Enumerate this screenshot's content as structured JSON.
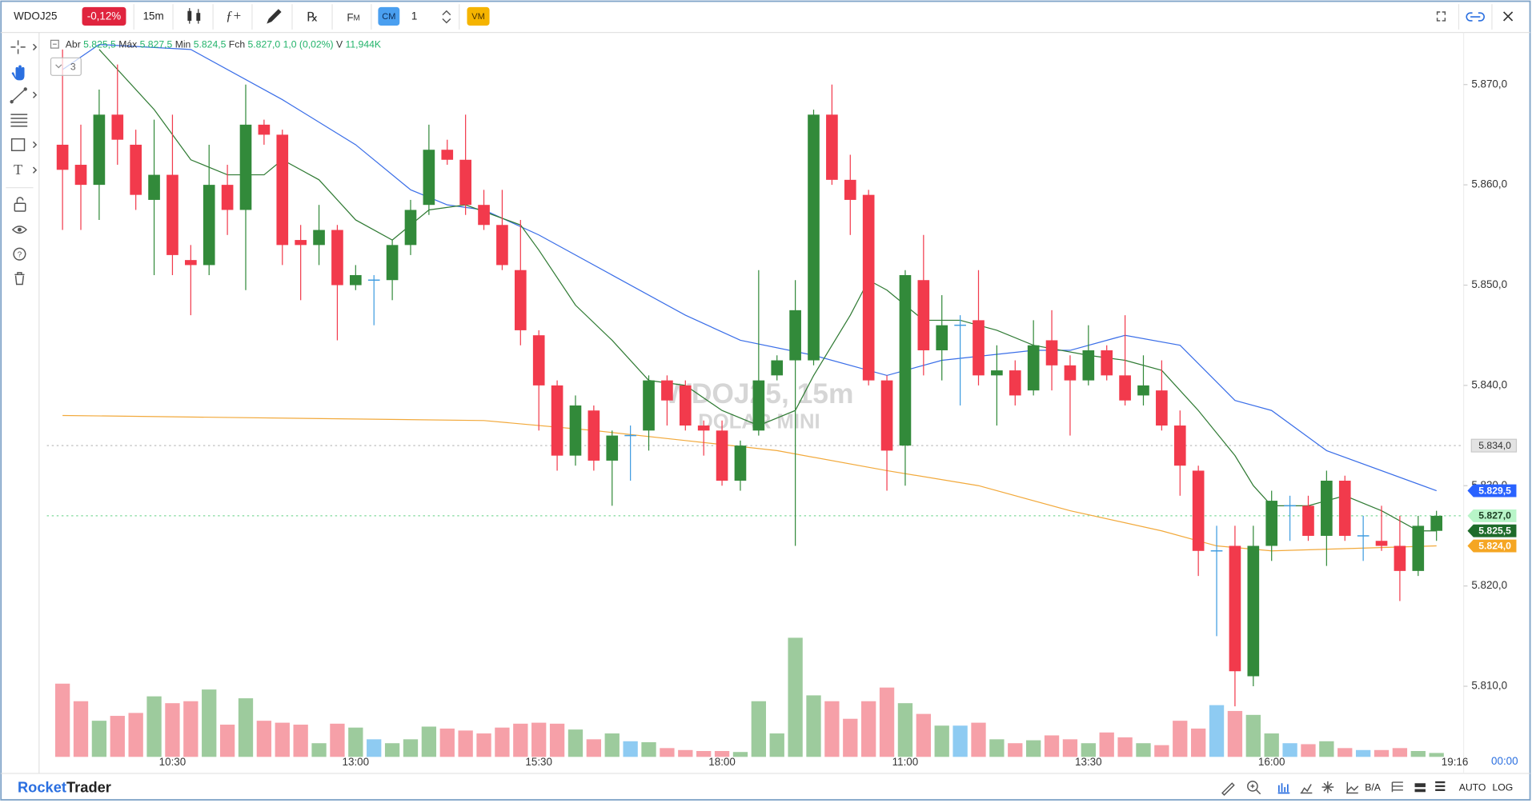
{
  "toolbar": {
    "symbol": "WDOJ25",
    "change": "-0,12%",
    "timeframe": "15m",
    "fm": "F",
    "fm_sub": "M",
    "cm": "CM",
    "quantity": "1",
    "vm": "VM"
  },
  "legend": {
    "items": [
      {
        "label": "Abr",
        "value": "5.825,5"
      },
      {
        "label": "Máx",
        "value": "5.827,5"
      },
      {
        "label": "Min",
        "value": "5.824,5"
      },
      {
        "label": "Fch",
        "value": "5.827,0"
      }
    ],
    "change": "1,0 (0,02%)",
    "volume_label": "V",
    "volume": "11,944K",
    "collapsed_count": "3"
  },
  "watermark": {
    "line1": "WDOJ25, 15m",
    "line2": "DOLAR MINI"
  },
  "chart_data": {
    "type": "candlestick",
    "categories": [
      null,
      null,
      null,
      null,
      null,
      null,
      "10:30",
      null,
      null,
      null,
      null,
      null,
      null,
      null,
      null,
      null,
      "13:00",
      null,
      null,
      null,
      null,
      null,
      null,
      null,
      null,
      null,
      "15:30",
      null,
      null,
      null,
      null,
      null,
      null,
      null,
      null,
      null,
      "18:00",
      null,
      null,
      null,
      null,
      null,
      null,
      null,
      null,
      null,
      "11:00",
      null,
      null,
      null,
      null,
      null,
      null,
      null,
      null,
      null,
      "13:30",
      null,
      null,
      null,
      null,
      null,
      null,
      null,
      null,
      null,
      "16:00",
      null,
      null,
      null,
      null,
      null,
      null,
      null,
      null,
      null
    ],
    "open": [
      5864,
      5862,
      5860,
      5867,
      5864,
      5858.5,
      5861,
      5852.5,
      5852,
      5860,
      5857.5,
      5866,
      5865,
      5854.5,
      5854,
      5855.5,
      5850,
      5850.5,
      5850.5,
      5854,
      5858,
      5863.5,
      5862.5,
      5858,
      5856,
      5851.5,
      5845,
      5840,
      5833,
      5837.5,
      5832.5,
      5835,
      5835.5,
      5840.5,
      5840,
      5836,
      5835.5,
      5830.5,
      5835.5,
      5841,
      5842.5,
      5842.5,
      5867,
      5860.5,
      5859,
      5840.5,
      5834,
      5850.5,
      5843.5,
      5846,
      5846.5,
      5841,
      5841.5,
      5839.5,
      5844.5,
      5842,
      5840.5,
      5843.5,
      5841,
      5839,
      5839.5,
      5836,
      5831.5,
      5823.5,
      5824,
      5811,
      5824,
      5828,
      5828,
      5825,
      5830.5,
      5825,
      5824.5,
      5824,
      5821.5,
      5825.5
    ],
    "high": [
      5873.5,
      5866,
      5869.5,
      5872,
      5865.5,
      5866.5,
      5867,
      5854,
      5864,
      5862,
      5870,
      5866.5,
      5865.5,
      5856,
      5858,
      5856,
      5852,
      5851,
      5854.5,
      5858.5,
      5866,
      5864.5,
      5867,
      5859.5,
      5859.5,
      5856.5,
      5845.5,
      5840.5,
      5839,
      5838,
      5835.5,
      5836,
      5841,
      5841,
      5840.5,
      5836.5,
      5836.5,
      5834.5,
      5851.5,
      5843,
      5850.5,
      5867.5,
      5870,
      5863,
      5859.5,
      5841,
      5851.5,
      5855,
      5849,
      5847,
      5851.5,
      5844,
      5842.5,
      5846.5,
      5847.5,
      5843,
      5846,
      5844,
      5847,
      5843,
      5842.5,
      5837.5,
      5832,
      5826,
      5826,
      5826,
      5829.5,
      5829,
      5829,
      5831.5,
      5831,
      5827,
      5828,
      5827,
      5827,
      5827.5
    ],
    "low": [
      5855.5,
      5855.5,
      5856.5,
      5862,
      5857.5,
      5851,
      5851,
      5847,
      5851,
      5855,
      5849.5,
      5864,
      5852,
      5848.5,
      5852,
      5844.5,
      5849.5,
      5846,
      5848.5,
      5853,
      5857,
      5862,
      5857,
      5855.5,
      5851.5,
      5844,
      5835.5,
      5831.5,
      5832,
      5831.5,
      5828,
      5830.5,
      5833.5,
      5836,
      5835.5,
      5833,
      5830,
      5829.5,
      5835,
      5840.5,
      5824,
      5842,
      5860,
      5855,
      5840,
      5829.5,
      5830,
      5841,
      5840.5,
      5838,
      5840,
      5836,
      5838,
      5839,
      5839.5,
      5835,
      5840,
      5840.5,
      5838,
      5838,
      5835.5,
      5829,
      5821,
      5815,
      5808,
      5810,
      5822.5,
      5824.5,
      5824.5,
      5822,
      5824.5,
      5822.5,
      5823.5,
      5818.5,
      5821,
      5824.5
    ],
    "close": [
      5861.5,
      5860,
      5867,
      5864.5,
      5859,
      5861,
      5853,
      5852,
      5860,
      5857.5,
      5866,
      5865,
      5854,
      5854,
      5855.5,
      5850,
      5851,
      5850.5,
      5854,
      5857.5,
      5863.5,
      5862.5,
      5858,
      5856,
      5852,
      5845.5,
      5840,
      5833,
      5838,
      5832.5,
      5835,
      5835,
      5840.5,
      5838.5,
      5836,
      5835.5,
      5830.5,
      5834,
      5840.5,
      5842.5,
      5847.5,
      5867,
      5860.5,
      5858.5,
      5840.5,
      5833.5,
      5851,
      5843.5,
      5846,
      5846,
      5841,
      5841.5,
      5839,
      5844,
      5842,
      5840.5,
      5843.5,
      5841,
      5838.5,
      5840,
      5836,
      5832,
      5823.5,
      5823.5,
      5811.5,
      5824,
      5828.5,
      5828,
      5825,
      5830.5,
      5825,
      5825,
      5824,
      5821.5,
      5826,
      5827
    ],
    "volume": [
      75,
      57,
      37,
      42,
      45,
      62,
      55,
      57,
      69,
      33,
      60,
      37,
      35,
      33,
      14,
      34,
      30,
      18,
      14,
      18,
      31,
      29,
      27,
      24,
      30,
      34,
      35,
      34,
      28,
      18,
      24,
      16,
      15,
      9,
      7,
      6,
      6,
      5,
      57,
      24,
      122,
      63,
      57,
      39,
      57,
      71,
      55,
      44,
      32,
      32,
      35,
      18,
      14,
      17,
      22,
      18,
      14,
      25,
      20,
      14,
      12,
      37,
      29,
      53,
      47,
      43,
      24,
      14,
      13,
      16,
      9,
      7,
      7,
      9,
      6,
      4
    ],
    "up_color": "#328a3a",
    "down_color": "#f23a4c",
    "doji_color": "#3d9be0",
    "volume_up_color": "#9dcb9d",
    "volume_down_color": "#f6a0a8",
    "volume_doji_color": "#8ecbf2",
    "lines": [
      {
        "color": "#3a6ee8",
        "x": [
          0,
          2,
          7,
          12,
          16,
          19,
          21,
          23,
          26,
          30,
          34,
          37,
          41,
          45,
          48,
          53,
          55,
          58,
          61,
          64,
          66,
          69,
          75
        ],
        "values": [
          5871.5,
          5874,
          5873.5,
          5868.5,
          5864,
          5859.5,
          5858,
          5857.5,
          5855,
          5851,
          5847,
          5844.5,
          5843,
          5841,
          5842.5,
          5843.5,
          5843.5,
          5845,
          5844,
          5838.5,
          5837.5,
          5833.5,
          5829.5
        ]
      },
      {
        "color": "#2f7a33",
        "x": [
          2,
          5,
          7,
          9,
          11,
          12,
          14,
          16,
          18,
          20,
          22,
          25,
          26,
          28,
          30,
          32,
          34,
          36,
          38,
          40,
          41,
          43,
          44,
          45,
          47,
          49,
          51,
          53,
          56,
          58,
          60,
          62,
          64,
          65,
          66,
          68,
          70,
          72,
          74,
          75
        ],
        "values": [
          5873.5,
          5867.5,
          5862.5,
          5861,
          5861,
          5862.5,
          5860.5,
          5856.5,
          5854.5,
          5857.5,
          5858,
          5856,
          5853.5,
          5848,
          5844.5,
          5840.5,
          5840,
          5837.5,
          5836,
          5837.5,
          5841,
          5847,
          5850.5,
          5849.5,
          5846.5,
          5846.5,
          5845.5,
          5844,
          5843,
          5842.5,
          5841.5,
          5837.5,
          5833,
          5830,
          5828,
          5828,
          5829,
          5827.5,
          5825.5,
          5825.5
        ]
      },
      {
        "color": "#f2a93b",
        "x": [
          0,
          23,
          29,
          34,
          39,
          45,
          50,
          55,
          60,
          63,
          66,
          75
        ],
        "values": [
          5837,
          5836.5,
          5835.5,
          5834.5,
          5833.5,
          5831.5,
          5830,
          5827.5,
          5825.5,
          5824,
          5823.5,
          5824
        ]
      }
    ],
    "ylim": [
      5801.5,
      5875
    ],
    "yticks": [
      {
        "value": 5810,
        "label": "5.810,0"
      },
      {
        "value": 5820,
        "label": "5.820,0"
      },
      {
        "value": 5830,
        "label": "5.830,0"
      },
      {
        "value": 5840,
        "label": "5.840,0"
      },
      {
        "value": 5850,
        "label": "5.850,0"
      },
      {
        "value": 5860,
        "label": "5.860,0"
      },
      {
        "value": 5870,
        "label": "5.870,0"
      }
    ],
    "grid": false,
    "price_labels": {
      "values": [
        5834,
        5829.5,
        5827,
        5825.5,
        5824
      ],
      "value_labels": [
        "5.834,0",
        "5.829,5",
        "5.827,0",
        "5.825,5",
        "5.824,0"
      ],
      "colors": [
        "#e3e3e3",
        "#2962ff",
        "#b8f5c8",
        "#1e6b2a",
        "#f5a623"
      ],
      "text_colors": [
        "#333333",
        "#ffffff",
        "#1b3d22",
        "#ffffff",
        "#ffffff"
      ],
      "dashed": [
        true,
        false,
        true,
        false,
        false
      ]
    },
    "current_time": "19:16",
    "countdown": "00:00"
  },
  "statusbar": {
    "brand_1": "Rocket",
    "brand_2": "Trader",
    "bid_ask": "B/A",
    "auto": "AUTO",
    "log": "LOG"
  }
}
